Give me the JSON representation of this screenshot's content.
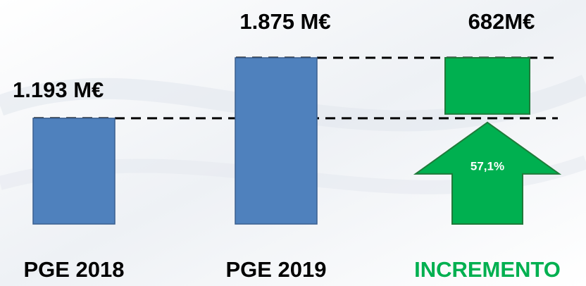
{
  "chart_data": {
    "type": "waterfall",
    "categories": [
      "PGE 2018",
      "PGE 2019",
      "INCREMENTO"
    ],
    "values": [
      1193,
      1875,
      682
    ],
    "value_labels": [
      "1.193 M€",
      "1.875 M€",
      "682M€"
    ],
    "colors": [
      "#4f81bd",
      "#4f81bd",
      "#00b050"
    ],
    "change_pct": {
      "value": 57.1,
      "label": "57,1%"
    }
  }
}
